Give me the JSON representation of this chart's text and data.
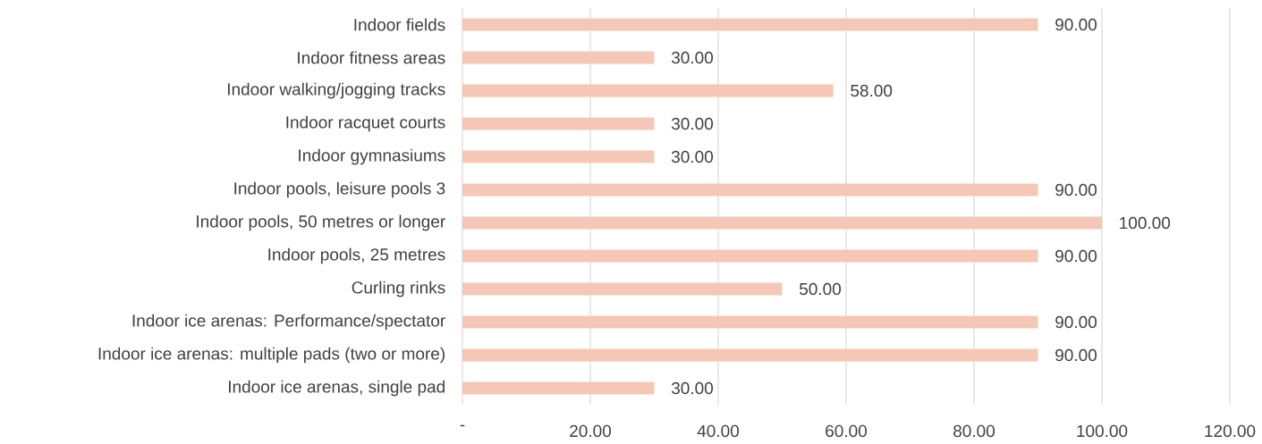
{
  "chart_data": {
    "type": "bar",
    "orientation": "horizontal",
    "categories": [
      "Indoor fields",
      "Indoor fitness areas",
      "Indoor walking/jogging tracks",
      "Indoor racquet courts",
      "Indoor gymnasiums",
      "Indoor pools, leisure pools 3",
      "Indoor pools, 50 metres or longer",
      "Indoor pools, 25 metres",
      "Curling rinks",
      "Indoor ice arenas: Performance/spectator",
      "Indoor ice arenas: multiple pads (two or more)",
      "Indoor ice arenas, single pad"
    ],
    "values": [
      90,
      30,
      58,
      30,
      30,
      90,
      100,
      90,
      50,
      90,
      90,
      30
    ],
    "value_labels": [
      "90.00",
      "30.00",
      "58.00",
      "30.00",
      "30.00",
      "90.00",
      "100.00",
      "90.00",
      "50.00",
      "90.00",
      "90.00",
      "30.00"
    ],
    "color": "#f4c7b6",
    "xlim": [
      0,
      120
    ],
    "xticks": [
      {
        "value": 0,
        "label": "-"
      },
      {
        "value": 20,
        "label": "20.00"
      },
      {
        "value": 40,
        "label": "40.00"
      },
      {
        "value": 60,
        "label": "60.00"
      },
      {
        "value": 80,
        "label": "80.00"
      },
      {
        "value": 100,
        "label": "100.00"
      },
      {
        "value": 120,
        "label": "120.00"
      }
    ],
    "grid": "x"
  }
}
